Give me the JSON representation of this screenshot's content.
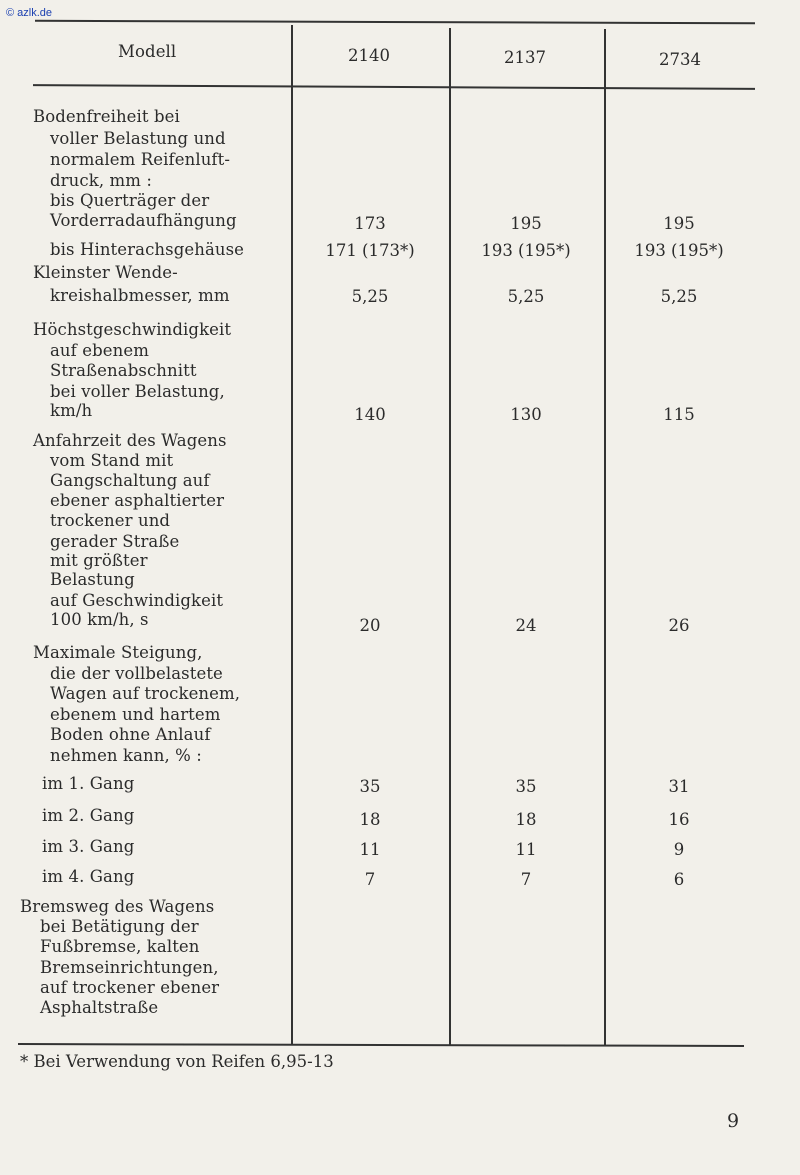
{
  "watermark": "© azlk.de",
  "header": {
    "label": "Modell",
    "models": [
      "2140",
      "2137",
      "2734"
    ]
  },
  "rows": [
    {
      "label_lines": [
        "Bodenfreiheit bei",
        "voller Belastung und",
        "normalem Reifenluft-",
        "druck, mm :",
        "bis Querträger der",
        "Vorderradaufhängung",
        "bis Hinterachsgehäuse"
      ],
      "values": [
        [
          "173",
          "195",
          "195"
        ],
        [
          "171 (173*)",
          "193 (195*)",
          "193 (195*)"
        ]
      ]
    },
    {
      "label_lines": [
        "Kleinster Wende-",
        "kreishalbmesser, mm"
      ],
      "values": [
        [
          "5,25",
          "5,25",
          "5,25"
        ]
      ]
    },
    {
      "label_lines": [
        "Höchstgeschwindigkeit",
        "auf ebenem",
        "Straßenabschnitt",
        "bei voller Belastung,",
        "km/h"
      ],
      "values": [
        [
          "140",
          "130",
          "115"
        ]
      ]
    },
    {
      "label_lines": [
        "Anfahrzeit des Wagens",
        "vom Stand mit",
        "Gangschaltung auf",
        "ebener asphaltierter",
        "trockener und",
        "gerader Straße",
        "mit größter",
        "Belastung",
        "auf Geschwindigkeit",
        "100 km/h, s"
      ],
      "values": [
        [
          "20",
          "24",
          "26"
        ]
      ]
    },
    {
      "label_lines": [
        "Maximale Steigung,",
        "die der vollbelastete",
        "Wagen auf trockenem,",
        "ebenem und hartem",
        "Boden ohne Anlauf",
        "nehmen kann, % :",
        "im 1. Gang",
        "im 2. Gang",
        "im 3. Gang",
        "im 4. Gang"
      ],
      "values": [
        [
          "35",
          "35",
          "31"
        ],
        [
          "18",
          "18",
          "16"
        ],
        [
          "11",
          "11",
          "9"
        ],
        [
          "7",
          "7",
          "6"
        ]
      ]
    },
    {
      "label_lines": [
        "Bremsweg des Wagens",
        "bei Betätigung der",
        "Fußbremse, kalten",
        "Bremseinrichtungen,",
        "auf trockener ebener",
        "Asphaltstraße"
      ],
      "values": []
    }
  ],
  "footnote": "* Bei Verwendung von Reifen 6,95-13",
  "page_number": "9"
}
